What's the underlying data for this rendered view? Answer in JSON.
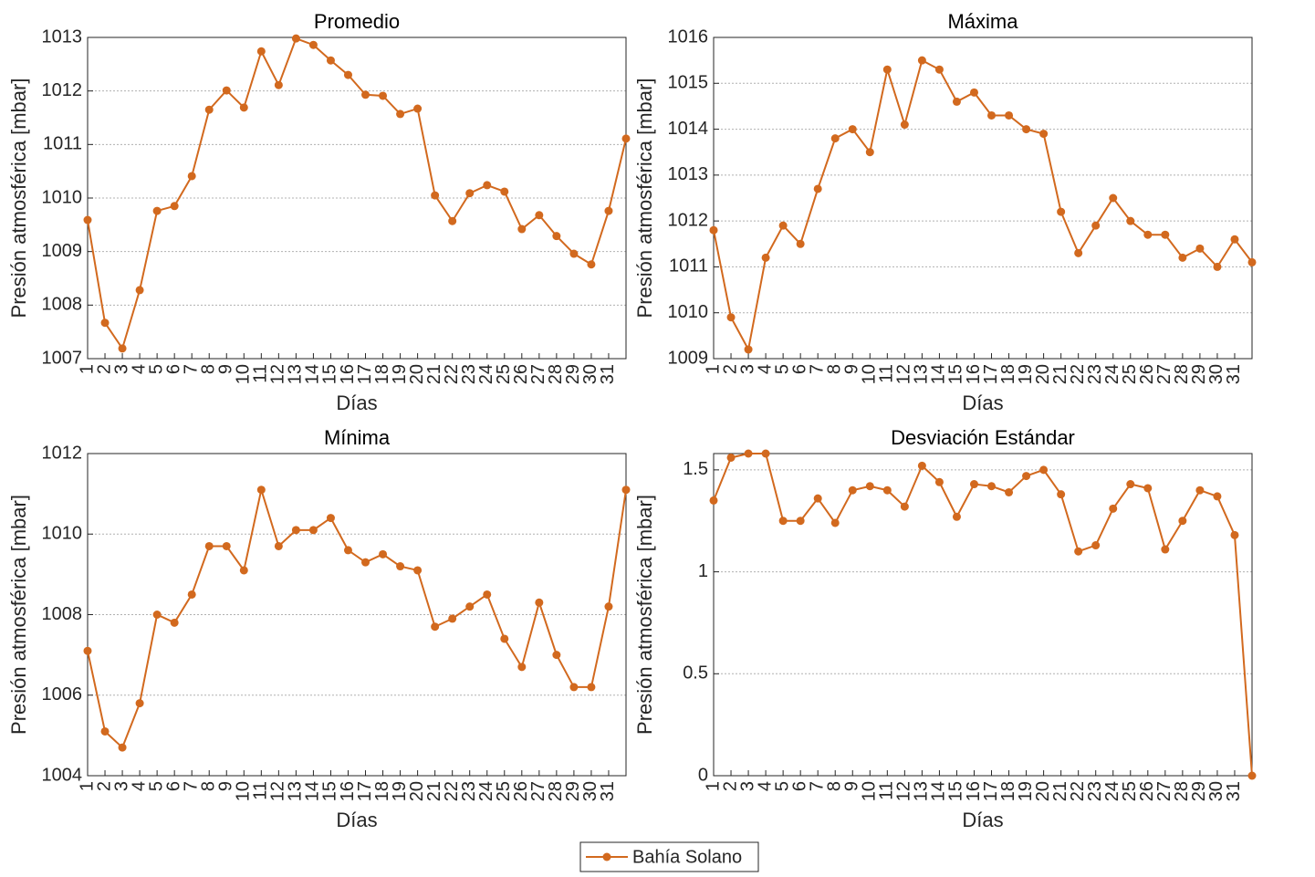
{
  "chart_data": [
    {
      "type": "line",
      "title": "Promedio",
      "xlabel": "Días",
      "ylabel": "Presión atmosférica [mbar]",
      "color": "#d2691e",
      "grid": true,
      "x": [
        1,
        2,
        3,
        4,
        5,
        6,
        7,
        8,
        9,
        10,
        11,
        12,
        13,
        14,
        15,
        16,
        17,
        18,
        19,
        20,
        21,
        22,
        23,
        24,
        25,
        26,
        27,
        28,
        29,
        30,
        31,
        32
      ],
      "values": [
        1009.59,
        1007.67,
        1007.19,
        1008.28,
        1009.76,
        1009.85,
        1010.41,
        1011.65,
        1012.01,
        1011.69,
        1012.74,
        1012.11,
        1012.98,
        1012.86,
        1012.57,
        1012.3,
        1011.93,
        1011.91,
        1011.57,
        1011.67,
        1010.05,
        1009.57,
        1010.09,
        1010.24,
        1010.12,
        1009.42,
        1009.68,
        1009.29,
        1008.96,
        1008.76,
        1009.76,
        1011.11
      ],
      "xlim": [
        1,
        32
      ],
      "xticks": [
        1,
        2,
        3,
        4,
        5,
        6,
        7,
        8,
        9,
        10,
        11,
        12,
        13,
        14,
        15,
        16,
        17,
        18,
        19,
        20,
        21,
        22,
        23,
        24,
        25,
        26,
        27,
        28,
        29,
        30,
        31
      ],
      "ylim": [
        1007,
        1013
      ],
      "yticks": [
        1007,
        1008,
        1009,
        1010,
        1011,
        1012,
        1013
      ]
    },
    {
      "type": "line",
      "title": "Máxima",
      "xlabel": "Días",
      "ylabel": "Presión atmosférica [mbar]",
      "color": "#d2691e",
      "grid": true,
      "x": [
        1,
        2,
        3,
        4,
        5,
        6,
        7,
        8,
        9,
        10,
        11,
        12,
        13,
        14,
        15,
        16,
        17,
        18,
        19,
        20,
        21,
        22,
        23,
        24,
        25,
        26,
        27,
        28,
        29,
        30,
        31,
        32
      ],
      "values": [
        1011.8,
        1009.9,
        1009.2,
        1011.2,
        1011.9,
        1011.5,
        1012.7,
        1013.8,
        1014.0,
        1013.5,
        1015.3,
        1014.1,
        1015.5,
        1015.3,
        1014.6,
        1014.8,
        1014.3,
        1014.3,
        1014.0,
        1013.9,
        1012.2,
        1011.3,
        1011.9,
        1012.5,
        1012.0,
        1011.7,
        1011.7,
        1011.2,
        1011.4,
        1011.0,
        1011.6,
        1011.1
      ],
      "xlim": [
        1,
        32
      ],
      "xticks": [
        1,
        2,
        3,
        4,
        5,
        6,
        7,
        8,
        9,
        10,
        11,
        12,
        13,
        14,
        15,
        16,
        17,
        18,
        19,
        20,
        21,
        22,
        23,
        24,
        25,
        26,
        27,
        28,
        29,
        30,
        31
      ],
      "ylim": [
        1009,
        1016
      ],
      "yticks": [
        1009,
        1010,
        1011,
        1012,
        1013,
        1014,
        1015,
        1016
      ]
    },
    {
      "type": "line",
      "title": "Mínima",
      "xlabel": "Días",
      "ylabel": "Presión atmosférica [mbar]",
      "color": "#d2691e",
      "grid": true,
      "x": [
        1,
        2,
        3,
        4,
        5,
        6,
        7,
        8,
        9,
        10,
        11,
        12,
        13,
        14,
        15,
        16,
        17,
        18,
        19,
        20,
        21,
        22,
        23,
        24,
        25,
        26,
        27,
        28,
        29,
        30,
        31,
        32
      ],
      "values": [
        1007.1,
        1005.1,
        1004.7,
        1005.8,
        1008.0,
        1007.8,
        1008.5,
        1009.7,
        1009.7,
        1009.1,
        1011.1,
        1009.7,
        1010.1,
        1010.1,
        1010.4,
        1009.6,
        1009.3,
        1009.5,
        1009.2,
        1009.1,
        1007.7,
        1007.9,
        1008.2,
        1008.5,
        1007.4,
        1006.7,
        1008.3,
        1007.0,
        1006.2,
        1006.2,
        1008.2,
        1011.1
      ],
      "xlim": [
        1,
        32
      ],
      "xticks": [
        1,
        2,
        3,
        4,
        5,
        6,
        7,
        8,
        9,
        10,
        11,
        12,
        13,
        14,
        15,
        16,
        17,
        18,
        19,
        20,
        21,
        22,
        23,
        24,
        25,
        26,
        27,
        28,
        29,
        30,
        31
      ],
      "ylim": [
        1004,
        1012
      ],
      "yticks": [
        1004,
        1006,
        1008,
        1010,
        1012
      ]
    },
    {
      "type": "line",
      "title": "Desviación Estándar",
      "xlabel": "Días",
      "ylabel": "Presión atmosférica [mbar]",
      "color": "#d2691e",
      "grid": true,
      "x": [
        1,
        2,
        3,
        4,
        5,
        6,
        7,
        8,
        9,
        10,
        11,
        12,
        13,
        14,
        15,
        16,
        17,
        18,
        19,
        20,
        21,
        22,
        23,
        24,
        25,
        26,
        27,
        28,
        29,
        30,
        31,
        32
      ],
      "values": [
        1.35,
        1.56,
        1.58,
        1.58,
        1.25,
        1.25,
        1.36,
        1.24,
        1.4,
        1.42,
        1.4,
        1.32,
        1.52,
        1.44,
        1.27,
        1.43,
        1.42,
        1.39,
        1.47,
        1.5,
        1.38,
        1.1,
        1.13,
        1.31,
        1.43,
        1.41,
        1.11,
        1.25,
        1.4,
        1.37,
        1.18,
        0
      ],
      "xlim": [
        1,
        32
      ],
      "xticks": [
        1,
        2,
        3,
        4,
        5,
        6,
        7,
        8,
        9,
        10,
        11,
        12,
        13,
        14,
        15,
        16,
        17,
        18,
        19,
        20,
        21,
        22,
        23,
        24,
        25,
        26,
        27,
        28,
        29,
        30,
        31
      ],
      "ylim": [
        0,
        1.58
      ],
      "yticks": [
        0,
        0.5,
        1,
        1.5
      ]
    }
  ],
  "legend": {
    "name": "Bahía Solano",
    "color": "#d2691e",
    "position": "bottom"
  }
}
